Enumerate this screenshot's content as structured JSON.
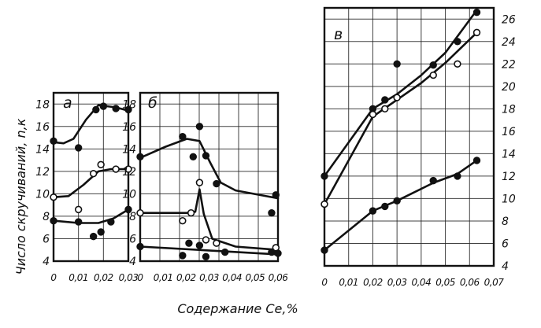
{
  "chart_data": {
    "type": "scatter",
    "ylabel": "Число скручиваний, n,к",
    "xlabel": "Содержание Се,%",
    "colors": {
      "ink": "#111111",
      "paper": "#ffffff"
    },
    "panels": [
      {
        "label": "а",
        "xlim": [
          0,
          0.03
        ],
        "ylim": [
          4,
          19
        ],
        "x_ticks": [
          "0",
          "0,01",
          "0,02",
          "0,03"
        ],
        "y_ticks": [
          "4",
          "6",
          "8",
          "10",
          "12",
          "14",
          "16",
          "18"
        ],
        "y_tick_side": "left",
        "series": [
          {
            "marker": "filled",
            "points": [
              [
                0,
                14.7
              ],
              [
                0.01,
                14.1
              ],
              [
                0.017,
                17.5
              ],
              [
                0.02,
                17.8
              ],
              [
                0.025,
                17.6
              ],
              [
                0.03,
                17.5
              ]
            ],
            "curve": [
              [
                0,
                14.6
              ],
              [
                0.004,
                14.5
              ],
              [
                0.008,
                14.9
              ],
              [
                0.013,
                16.6
              ],
              [
                0.018,
                17.9
              ],
              [
                0.025,
                17.7
              ],
              [
                0.03,
                17.4
              ]
            ]
          },
          {
            "marker": "open",
            "points": [
              [
                0,
                9.7
              ],
              [
                0.01,
                8.6
              ],
              [
                0.016,
                11.8
              ],
              [
                0.019,
                12.6
              ],
              [
                0.025,
                12.2
              ],
              [
                0.03,
                12.2
              ]
            ],
            "curve": [
              [
                0,
                9.7
              ],
              [
                0.006,
                9.8
              ],
              [
                0.012,
                10.8
              ],
              [
                0.018,
                12.0
              ],
              [
                0.023,
                12.2
              ],
              [
                0.03,
                12.2
              ]
            ]
          },
          {
            "marker": "filled",
            "points": [
              [
                0,
                7.6
              ],
              [
                0.01,
                7.5
              ],
              [
                0.016,
                6.2
              ],
              [
                0.019,
                6.6
              ],
              [
                0.023,
                7.5
              ],
              [
                0.03,
                8.6
              ]
            ],
            "curve": [
              [
                0,
                7.6
              ],
              [
                0.01,
                7.4
              ],
              [
                0.018,
                7.4
              ],
              [
                0.024,
                7.8
              ],
              [
                0.03,
                8.6
              ]
            ]
          }
        ]
      },
      {
        "label": "б",
        "xlim": [
          0,
          0.065
        ],
        "ylim": [
          4,
          19
        ],
        "x_ticks": [
          "0",
          "0,01",
          "0,02",
          "0,03",
          "0,04",
          "0,05",
          "0,06"
        ],
        "y_ticks": [
          "4",
          "6",
          "8",
          "10",
          "12",
          "14",
          "16",
          "18"
        ],
        "y_tick_side": "left",
        "series": [
          {
            "marker": "filled",
            "points": [
              [
                0,
                13.3
              ],
              [
                0.02,
                15.1
              ],
              [
                0.025,
                13.3
              ],
              [
                0.028,
                16.0
              ],
              [
                0.031,
                13.4
              ],
              [
                0.036,
                10.9
              ],
              [
                0.062,
                8.3
              ],
              [
                0.064,
                9.9
              ]
            ],
            "curve": [
              [
                0,
                13.2
              ],
              [
                0.012,
                14.2
              ],
              [
                0.022,
                14.9
              ],
              [
                0.028,
                14.7
              ],
              [
                0.033,
                12.8
              ],
              [
                0.038,
                11.0
              ],
              [
                0.045,
                10.3
              ],
              [
                0.065,
                9.6
              ]
            ]
          },
          {
            "marker": "open",
            "points": [
              [
                0,
                8.3
              ],
              [
                0.02,
                7.6
              ],
              [
                0.024,
                8.3
              ],
              [
                0.028,
                11.0
              ],
              [
                0.031,
                5.9
              ],
              [
                0.036,
                5.6
              ],
              [
                0.064,
                5.2
              ]
            ],
            "curve": [
              [
                0,
                8.3
              ],
              [
                0.022,
                8.3
              ],
              [
                0.026,
                8.4
              ],
              [
                0.028,
                10.4
              ],
              [
                0.03,
                8.2
              ],
              [
                0.034,
                6.0
              ],
              [
                0.045,
                5.3
              ],
              [
                0.065,
                5.0
              ]
            ]
          },
          {
            "marker": "filled",
            "points": [
              [
                0,
                5.3
              ],
              [
                0.02,
                4.5
              ],
              [
                0.023,
                5.6
              ],
              [
                0.028,
                5.4
              ],
              [
                0.031,
                4.4
              ],
              [
                0.04,
                4.8
              ],
              [
                0.062,
                4.8
              ],
              [
                0.065,
                4.7
              ]
            ],
            "curve": [
              [
                0,
                5.3
              ],
              [
                0.065,
                4.6
              ]
            ]
          }
        ]
      },
      {
        "label": "в",
        "xlim": [
          0,
          0.07
        ],
        "ylim": [
          4,
          27
        ],
        "x_ticks": [
          "0",
          "0,01",
          "0,02",
          "0,03",
          "0,04",
          "0,05",
          "0,06",
          "0,07"
        ],
        "y_ticks": [
          "4",
          "6",
          "8",
          "10",
          "12",
          "14",
          "16",
          "18",
          "20",
          "22",
          "24",
          "26"
        ],
        "y_tick_side": "right",
        "series": [
          {
            "marker": "filled",
            "points": [
              [
                0,
                12.0
              ],
              [
                0.02,
                18.0
              ],
              [
                0.025,
                18.8
              ],
              [
                0.03,
                22.0
              ],
              [
                0.045,
                21.9
              ],
              [
                0.055,
                24.0
              ],
              [
                0.063,
                26.6
              ]
            ],
            "curve": [
              [
                0,
                12.0
              ],
              [
                0.02,
                18.0
              ],
              [
                0.03,
                19.3
              ],
              [
                0.04,
                21.0
              ],
              [
                0.05,
                23.0
              ],
              [
                0.063,
                26.8
              ]
            ]
          },
          {
            "marker": "open",
            "points": [
              [
                0,
                9.5
              ],
              [
                0.02,
                17.5
              ],
              [
                0.025,
                18.0
              ],
              [
                0.03,
                19.0
              ],
              [
                0.045,
                21.0
              ],
              [
                0.055,
                22.0
              ],
              [
                0.063,
                24.8
              ]
            ],
            "curve": [
              [
                0,
                9.5
              ],
              [
                0.02,
                17.3
              ],
              [
                0.03,
                18.8
              ],
              [
                0.04,
                20.3
              ],
              [
                0.05,
                22.1
              ],
              [
                0.063,
                24.8
              ]
            ]
          },
          {
            "marker": "filled",
            "points": [
              [
                0,
                5.4
              ],
              [
                0.02,
                8.9
              ],
              [
                0.025,
                9.3
              ],
              [
                0.03,
                9.8
              ],
              [
                0.045,
                11.6
              ],
              [
                0.055,
                12.0
              ],
              [
                0.063,
                13.4
              ]
            ],
            "curve": [
              [
                0,
                5.4
              ],
              [
                0.02,
                8.9
              ],
              [
                0.03,
                9.8
              ],
              [
                0.045,
                11.4
              ],
              [
                0.055,
                12.2
              ],
              [
                0.063,
                13.4
              ]
            ]
          }
        ]
      }
    ]
  }
}
